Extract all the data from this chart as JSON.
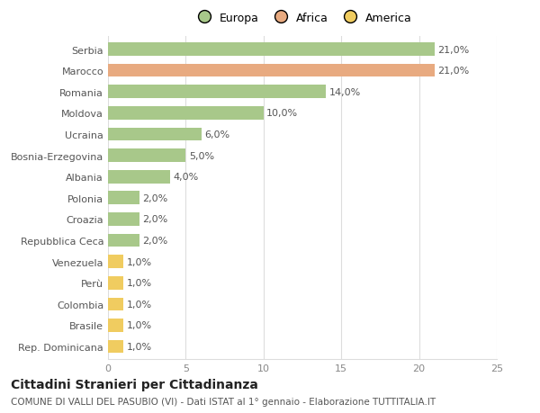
{
  "categories": [
    "Serbia",
    "Marocco",
    "Romania",
    "Moldova",
    "Ucraina",
    "Bosnia-Erzegovina",
    "Albania",
    "Polonia",
    "Croazia",
    "Repubblica Ceca",
    "Venezuela",
    "Perù",
    "Colombia",
    "Brasile",
    "Rep. Dominicana"
  ],
  "values": [
    21.0,
    21.0,
    14.0,
    10.0,
    6.0,
    5.0,
    4.0,
    2.0,
    2.0,
    2.0,
    1.0,
    1.0,
    1.0,
    1.0,
    1.0
  ],
  "colors": [
    "#a8c88a",
    "#e8aa80",
    "#a8c88a",
    "#a8c88a",
    "#a8c88a",
    "#a8c88a",
    "#a8c88a",
    "#a8c88a",
    "#a8c88a",
    "#a8c88a",
    "#f0cc60",
    "#f0cc60",
    "#f0cc60",
    "#f0cc60",
    "#f0cc60"
  ],
  "labels": [
    "21,0%",
    "21,0%",
    "14,0%",
    "10,0%",
    "6,0%",
    "5,0%",
    "4,0%",
    "2,0%",
    "2,0%",
    "2,0%",
    "1,0%",
    "1,0%",
    "1,0%",
    "1,0%",
    "1,0%"
  ],
  "legend": [
    {
      "label": "Europa",
      "color": "#a8c88a"
    },
    {
      "label": "Africa",
      "color": "#e8aa80"
    },
    {
      "label": "America",
      "color": "#f0cc60"
    }
  ],
  "xlim": [
    0,
    25
  ],
  "xticks": [
    0,
    5,
    10,
    15,
    20,
    25
  ],
  "title": "Cittadini Stranieri per Cittadinanza",
  "subtitle": "COMUNE DI VALLI DEL PASUBIO (VI) - Dati ISTAT al 1° gennaio - Elaborazione TUTTITALIA.IT",
  "bg_color": "#ffffff",
  "grid_color": "#dddddd",
  "bar_height": 0.62,
  "label_fontsize": 8,
  "tick_fontsize": 8,
  "title_fontsize": 10,
  "subtitle_fontsize": 7.5,
  "legend_fontsize": 9
}
